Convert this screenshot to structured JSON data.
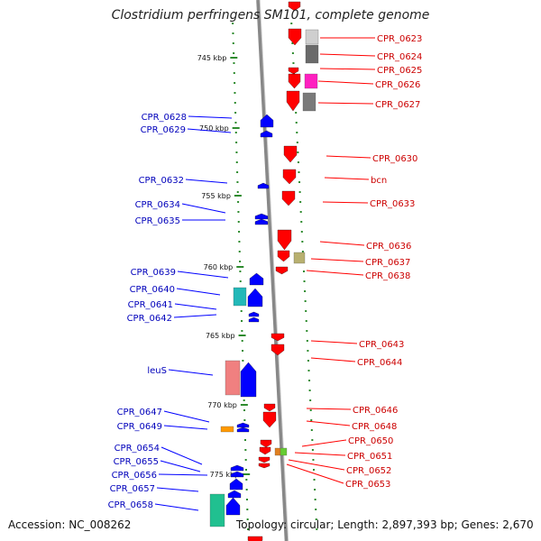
{
  "title": "Clostridium perfringens SM101, complete genome",
  "accession": "Accession: NC_008262",
  "topology": "Topology: circular; Length: 2,897,393 bp; Genes: 2,670",
  "colors": {
    "forward": "#ff0000",
    "reverse": "#0000ff",
    "forward_label": "#cc0000",
    "reverse_label": "#0000bb",
    "tick": "#2e8b2e",
    "backbone": "#888888"
  },
  "kbp_labels": [
    "745 kbp",
    "750 kbp",
    "755 kbp",
    "760 kbp",
    "765 kbp",
    "770 kbp",
    "775 kbp"
  ],
  "forward_genes": [
    "CPR_0623",
    "CPR_0624",
    "CPR_0625",
    "CPR_0626",
    "CPR_0627",
    "CPR_0630",
    "bcn",
    "CPR_0633",
    "CPR_0636",
    "CPR_0637",
    "CPR_0638",
    "CPR_0643",
    "CPR_0644",
    "CPR_0646",
    "CPR_0648",
    "CPR_0650",
    "CPR_0651",
    "CPR_0652",
    "CPR_0653"
  ],
  "reverse_genes": [
    "CPR_0628",
    "CPR_0629",
    "CPR_0632",
    "CPR_0634",
    "CPR_0635",
    "CPR_0639",
    "CPR_0640",
    "CPR_0641",
    "CPR_0642",
    "leuS",
    "CPR_0647",
    "CPR_0649",
    "CPR_0654",
    "CPR_0655",
    "CPR_0656",
    "CPR_0657",
    "CPR_0658"
  ]
}
